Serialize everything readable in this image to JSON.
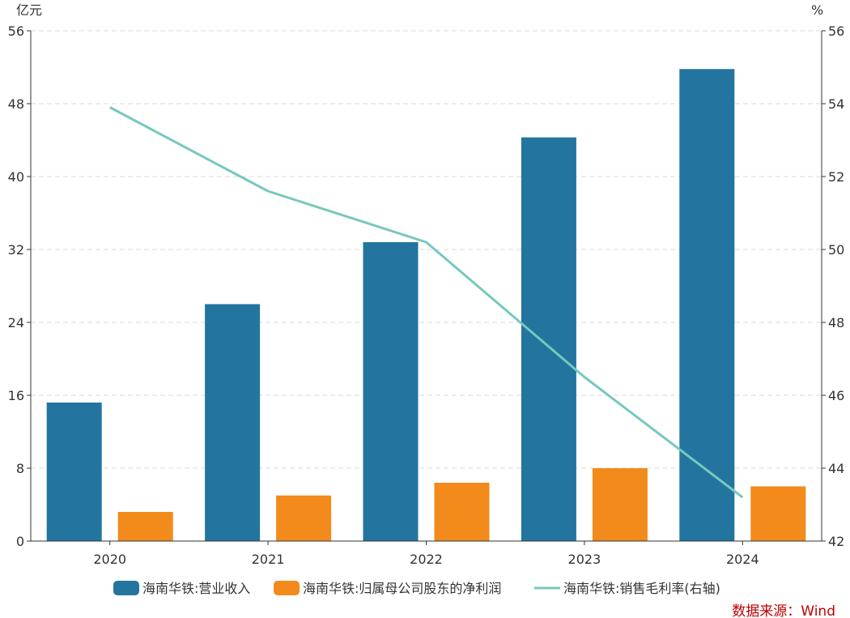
{
  "chart_data": {
    "type": "bar",
    "categories": [
      "2020",
      "2021",
      "2022",
      "2023",
      "2024"
    ],
    "series": [
      {
        "name": "海南华铁:营业收入",
        "type": "bar",
        "axis": "left",
        "color": "#23759f",
        "values": [
          15.2,
          26.0,
          32.8,
          44.3,
          51.8
        ]
      },
      {
        "name": "海南华铁:归属母公司股东的净利润",
        "type": "bar",
        "axis": "left",
        "color": "#f28a1c",
        "values": [
          3.2,
          5.0,
          6.4,
          8.0,
          6.0
        ]
      },
      {
        "name": "海南华铁:销售毛利率(右轴)",
        "type": "line",
        "axis": "right",
        "color": "#77c8be",
        "values": [
          53.9,
          51.6,
          50.2,
          46.5,
          43.2
        ]
      }
    ],
    "left_axis": {
      "unit": "亿元",
      "ylim": [
        0,
        56
      ],
      "ticks": [
        "0",
        "8",
        "16",
        "24",
        "32",
        "40",
        "48",
        "56"
      ]
    },
    "right_axis": {
      "unit": "%",
      "ylim": [
        42,
        56
      ],
      "ticks": [
        "42",
        "44",
        "46",
        "48",
        "50",
        "52",
        "54",
        "56"
      ]
    },
    "grid": true,
    "legend_position": "bottom"
  },
  "source": "数据来源：Wind"
}
